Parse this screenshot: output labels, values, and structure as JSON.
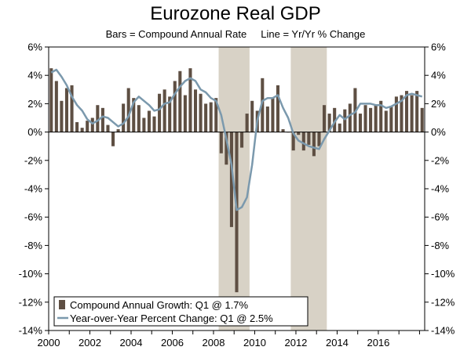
{
  "chart_data": {
    "type": "bar",
    "title": "Eurozone Real GDP",
    "subtitle": "Bars = Compound Annual Rate     Line = Yr/Yr % Change",
    "ylim": [
      -14,
      6
    ],
    "y_ticks": [
      "6%",
      "4%",
      "2%",
      "0%",
      "-2%",
      "-4%",
      "-6%",
      "-8%",
      "-10%",
      "-12%",
      "-14%"
    ],
    "y_tick_values": [
      6,
      4,
      2,
      0,
      -2,
      -4,
      -6,
      -8,
      -10,
      -12,
      -14
    ],
    "x_range": [
      "2000-01",
      "2018-04"
    ],
    "x_tick_labels": [
      "2000",
      "2002",
      "2004",
      "2006",
      "2008",
      "2010",
      "2012",
      "2014",
      "2016"
    ],
    "x_tick_years": [
      2000,
      2002,
      2004,
      2006,
      2008,
      2010,
      2012,
      2014,
      2016
    ],
    "grid": false,
    "legend_position": "bottom-left",
    "colors": {
      "bars": "#5e4f43",
      "line": "#7b99ad",
      "shading": "#d8d2c6",
      "axis": "#000000"
    },
    "recession_shading": [
      {
        "start": "2008-Q2",
        "end": "2009-Q3"
      },
      {
        "start": "2011-Q4",
        "end": "2013-Q2"
      }
    ],
    "categories": [
      "2000-Q1",
      "2000-Q2",
      "2000-Q3",
      "2000-Q4",
      "2001-Q1",
      "2001-Q2",
      "2001-Q3",
      "2001-Q4",
      "2002-Q1",
      "2002-Q2",
      "2002-Q3",
      "2002-Q4",
      "2003-Q1",
      "2003-Q2",
      "2003-Q3",
      "2003-Q4",
      "2004-Q1",
      "2004-Q2",
      "2004-Q3",
      "2004-Q4",
      "2005-Q1",
      "2005-Q2",
      "2005-Q3",
      "2005-Q4",
      "2006-Q1",
      "2006-Q2",
      "2006-Q3",
      "2006-Q4",
      "2007-Q1",
      "2007-Q2",
      "2007-Q3",
      "2007-Q4",
      "2008-Q1",
      "2008-Q2",
      "2008-Q3",
      "2008-Q4",
      "2009-Q1",
      "2009-Q2",
      "2009-Q3",
      "2009-Q4",
      "2010-Q1",
      "2010-Q2",
      "2010-Q3",
      "2010-Q4",
      "2011-Q1",
      "2011-Q2",
      "2011-Q3",
      "2011-Q4",
      "2012-Q1",
      "2012-Q2",
      "2012-Q3",
      "2012-Q4",
      "2013-Q1",
      "2013-Q2",
      "2013-Q3",
      "2013-Q4",
      "2014-Q1",
      "2014-Q2",
      "2014-Q3",
      "2014-Q4",
      "2015-Q1",
      "2015-Q2",
      "2015-Q3",
      "2015-Q4",
      "2016-Q1",
      "2016-Q2",
      "2016-Q3",
      "2016-Q4",
      "2017-Q1",
      "2017-Q2",
      "2017-Q3",
      "2017-Q4",
      "2018-Q1"
    ],
    "series": [
      {
        "name": "Compound Annual Growth: Q1 @ 1.7%",
        "type": "bar",
        "values": [
          4.5,
          3.6,
          2.2,
          3.1,
          3.3,
          0.7,
          0.3,
          0.8,
          1.0,
          1.9,
          1.7,
          0.5,
          -1.0,
          0.2,
          2.0,
          3.1,
          2.4,
          1.9,
          1.0,
          1.5,
          1.1,
          2.7,
          3.0,
          2.5,
          3.6,
          4.3,
          2.6,
          4.5,
          3.0,
          2.7,
          2.0,
          2.1,
          2.4,
          -1.5,
          -2.3,
          -6.7,
          -11.3,
          -1.1,
          1.3,
          2.2,
          1.5,
          3.8,
          1.8,
          2.4,
          3.3,
          0.2,
          0.0,
          -1.3,
          -0.2,
          -1.3,
          -0.9,
          -1.7,
          -1.0,
          1.9,
          1.3,
          1.7,
          0.6,
          1.6,
          2.0,
          3.1,
          1.3,
          1.9,
          1.7,
          1.9,
          2.2,
          1.5,
          1.8,
          2.5,
          2.6,
          2.9,
          2.6,
          2.9,
          1.7
        ]
      },
      {
        "name": "Year-over-Year Percent Change: Q1 @ 2.5%",
        "type": "line",
        "values": [
          4.2,
          4.4,
          3.9,
          3.3,
          2.5,
          1.9,
          1.5,
          0.9,
          0.6,
          0.8,
          1.1,
          1.0,
          0.7,
          0.4,
          0.6,
          1.1,
          2.1,
          2.5,
          2.2,
          1.9,
          1.5,
          1.6,
          2.0,
          2.1,
          2.7,
          3.2,
          3.6,
          3.8,
          3.6,
          3.0,
          2.8,
          2.4,
          2.2,
          1.2,
          -0.5,
          -2.3,
          -5.5,
          -5.3,
          -4.6,
          -2.3,
          0.8,
          2.2,
          2.4,
          2.4,
          2.6,
          1.7,
          1.0,
          -0.1,
          -0.6,
          -0.8,
          -1.0,
          -1.1,
          -1.2,
          -0.5,
          0.1,
          0.7,
          1.2,
          0.9,
          1.2,
          1.4,
          2.0,
          2.0,
          2.0,
          1.9,
          1.9,
          1.7,
          1.8,
          2.0,
          2.2,
          2.6,
          2.7,
          2.6,
          2.5
        ]
      }
    ]
  }
}
